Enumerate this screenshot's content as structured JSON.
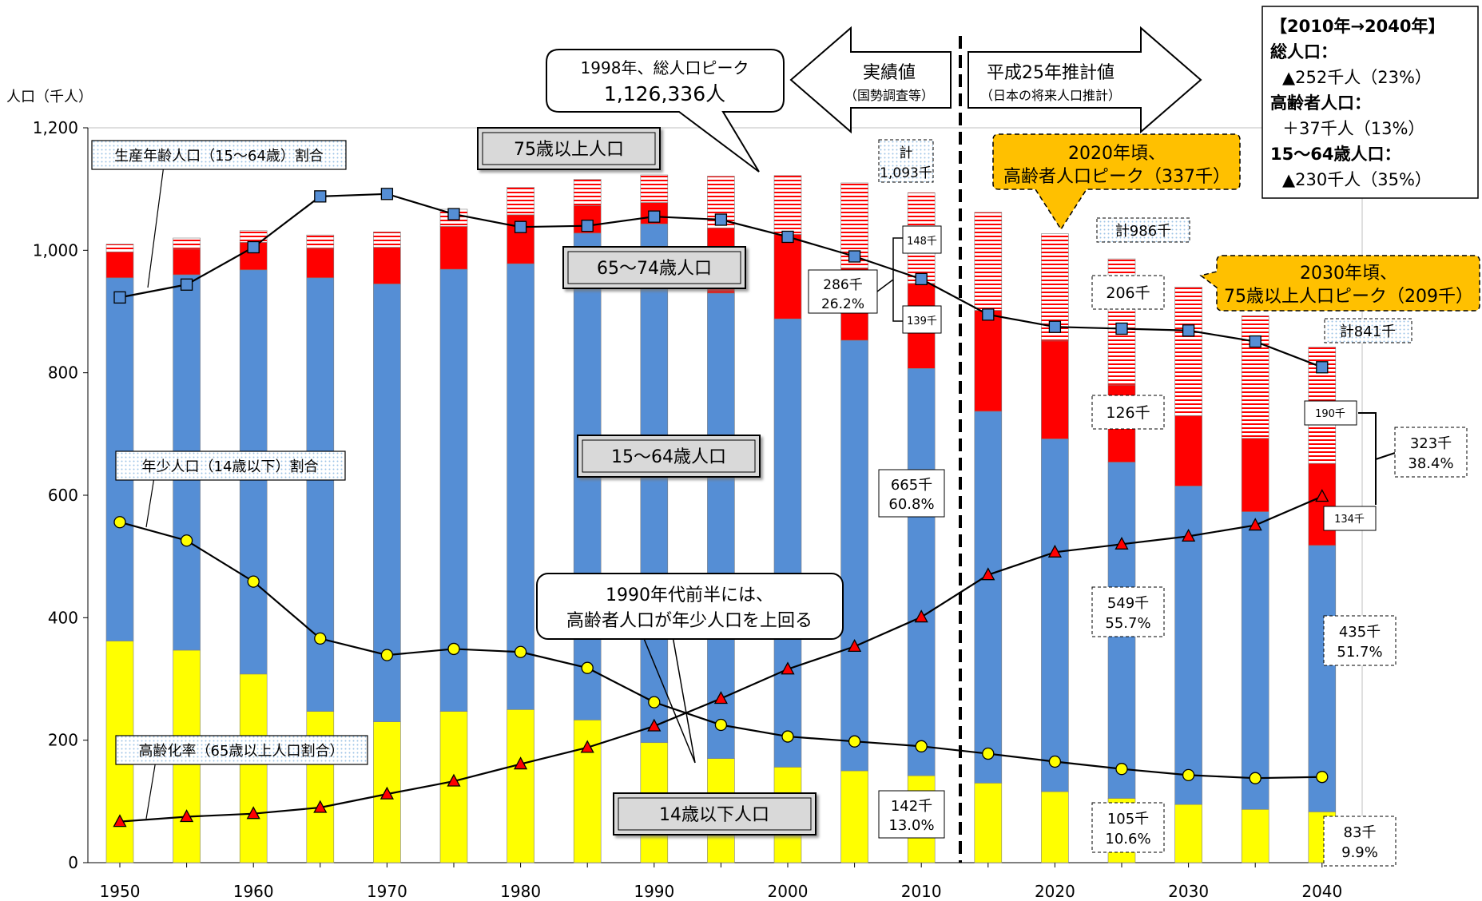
{
  "chart_data": {
    "type": "bar",
    "stacked": true,
    "y_unit_label": "人口（千人）",
    "ylim": [
      0,
      1200
    ],
    "yticks": [
      0,
      200,
      400,
      600,
      800,
      1000,
      1200
    ],
    "ytick_labels": [
      "0",
      "200",
      "400",
      "600",
      "800",
      "1,000",
      "1,200"
    ],
    "categories": [
      1950,
      1955,
      1960,
      1965,
      1970,
      1975,
      1980,
      1985,
      1990,
      1995,
      2000,
      2005,
      2010,
      2015,
      2020,
      2025,
      2030,
      2035,
      2040
    ],
    "xtick_labels": [
      "1950",
      "1960",
      "1970",
      "1980",
      "1990",
      "2000",
      "2010",
      "2020",
      "2030",
      "2040"
    ],
    "bar_series": [
      {
        "key": "u14",
        "color": "#ffff00",
        "values": [
          362,
          347,
          308,
          247,
          230,
          247,
          250,
          233,
          196,
          170,
          156,
          150,
          142,
          130,
          116,
          105,
          95,
          87,
          83
        ]
      },
      {
        "key": "w1564",
        "color": "#558ed5",
        "values": [
          593,
          613,
          660,
          708,
          715,
          722,
          728,
          795,
          847,
          760,
          732,
          703,
          665,
          607,
          576,
          549,
          520,
          486,
          435
        ]
      },
      {
        "key": "e6574",
        "color": "#ff0000",
        "values": [
          42,
          42,
          45,
          48,
          60,
          70,
          80,
          45,
          35,
          106,
          138,
          118,
          139,
          165,
          160,
          126,
          115,
          120,
          134
        ]
      },
      {
        "key": "o75",
        "color": "#ffffff",
        "hatch": "#ff0000",
        "values": [
          13,
          18,
          19,
          22,
          25,
          28,
          45,
          43,
          45,
          85,
          96,
          139,
          148,
          160,
          175,
          206,
          210,
          200,
          190
        ]
      }
    ],
    "line_series": [
      {
        "key": "working_age_ratio",
        "marker": "square",
        "color": "#558ed5",
        "values": [
          923,
          944,
          1005,
          1088,
          1092,
          1059,
          1038,
          1040,
          1055,
          1050,
          1022,
          990,
          953,
          895,
          875,
          872,
          869,
          851,
          809
        ]
      },
      {
        "key": "youth_ratio",
        "marker": "circle",
        "color": "#ffff00",
        "values": [
          556,
          526,
          459,
          366,
          339,
          349,
          344,
          318,
          262,
          225,
          206,
          198,
          190,
          178,
          165,
          153,
          143,
          138,
          140
        ]
      },
      {
        "key": "aging_rate",
        "marker": "triangle",
        "color": "#ff0000",
        "values": [
          67,
          75,
          80,
          90,
          112,
          133,
          161,
          188,
          223,
          268,
          316,
          353,
          401,
          470,
          507,
          520,
          533,
          551,
          598
        ]
      }
    ],
    "grid": false,
    "boundary_after": 2010
  },
  "labels": {
    "working_age_line": "生産年齢人口（15～64歳）割合",
    "youth_line": "年少人口（14歳以下）割合",
    "aging_line": "高齢化率（65歳以上人口割合）",
    "band_75": "75歳以上人口",
    "band_6574": "65～74歳人口",
    "band_1564": "15～64歳人口",
    "band_u14": "14歳以下人口"
  },
  "callouts": {
    "peak_1998_line1": "1998年、総人口ピーク",
    "peak_1998_line2": "1,126,336人",
    "actual_title": "実績値",
    "actual_sub": "（国勢調査等）",
    "projection_title": "平成25年推計値",
    "projection_sub": "（日本の将来人口推計）",
    "elderly_peak_line1": "2020年頃、",
    "elderly_peak_line2": "高齢者人口ピーク（337千）",
    "peak_75_line1": "2030年頃、",
    "peak_75_line2": "75歳以上人口ピーク（209千）",
    "crossover_line1": "1990年代前半には、",
    "crossover_line2": "高齢者人口が年少人口を上回る"
  },
  "summary": {
    "title": "【2010年→2040年】",
    "total_label": "総人口：",
    "total_value": "▲252千人（23%）",
    "elderly_label": "高齢者人口：",
    "elderly_value": "＋37千人（13%）",
    "working_label": "15～64歳人口：",
    "working_value": "▲230千人（35%）"
  },
  "value_boxes": {
    "total_2010_line1": "計",
    "total_2010_line2": "1,093千",
    "o75_2010": "148千",
    "elderly_2010_line1": "286千",
    "elderly_2010_line2": "26.2%",
    "e6574_2010": "139千",
    "working_2010_line1": "665千",
    "working_2010_line2": "60.8%",
    "youth_2010_line1": "142千",
    "youth_2010_line2": "13.0%",
    "total_2025": "計986千",
    "o75_2025": "206千",
    "e6574_2025": "126千",
    "working_2025_line1": "549千",
    "working_2025_line2": "55.7%",
    "youth_2025_line1": "105千",
    "youth_2025_line2": "10.6%",
    "total_2040": "計841千",
    "o75_2040": "190千",
    "elderly_2040_line1": "323千",
    "elderly_2040_line2": "38.4%",
    "e6574_2040": "134千",
    "working_2040_line1": "435千",
    "working_2040_line2": "51.7%",
    "youth_2040_line1": "83千",
    "youth_2040_line2": "9.9%"
  }
}
